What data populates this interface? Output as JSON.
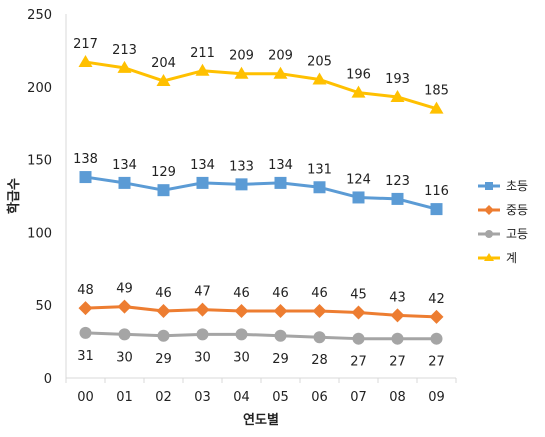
{
  "chart_data": {
    "type": "line",
    "title": "",
    "xlabel": "연도별",
    "ylabel": "학급수",
    "categories": [
      "00",
      "01",
      "02",
      "03",
      "04",
      "05",
      "06",
      "07",
      "08",
      "09"
    ],
    "ylim": [
      0,
      250
    ],
    "yticks": [
      0,
      50,
      100,
      150,
      200,
      250
    ],
    "grid": false,
    "legend_position": "right",
    "data_labels": true,
    "series": [
      {
        "name": "초등",
        "color": "#5b9bd5",
        "marker": "square",
        "values": [
          138,
          134,
          129,
          134,
          133,
          134,
          131,
          124,
          123,
          116
        ]
      },
      {
        "name": "중등",
        "color": "#ed7d31",
        "marker": "diamond",
        "values": [
          48,
          49,
          46,
          47,
          46,
          46,
          46,
          45,
          43,
          42
        ]
      },
      {
        "name": "고등",
        "color": "#a5a5a5",
        "marker": "circle",
        "values": [
          31,
          30,
          29,
          30,
          30,
          29,
          28,
          27,
          27,
          27
        ]
      },
      {
        "name": "계",
        "color": "#ffc000",
        "marker": "triangle",
        "values": [
          217,
          213,
          204,
          211,
          209,
          209,
          205,
          196,
          193,
          185
        ]
      }
    ]
  }
}
